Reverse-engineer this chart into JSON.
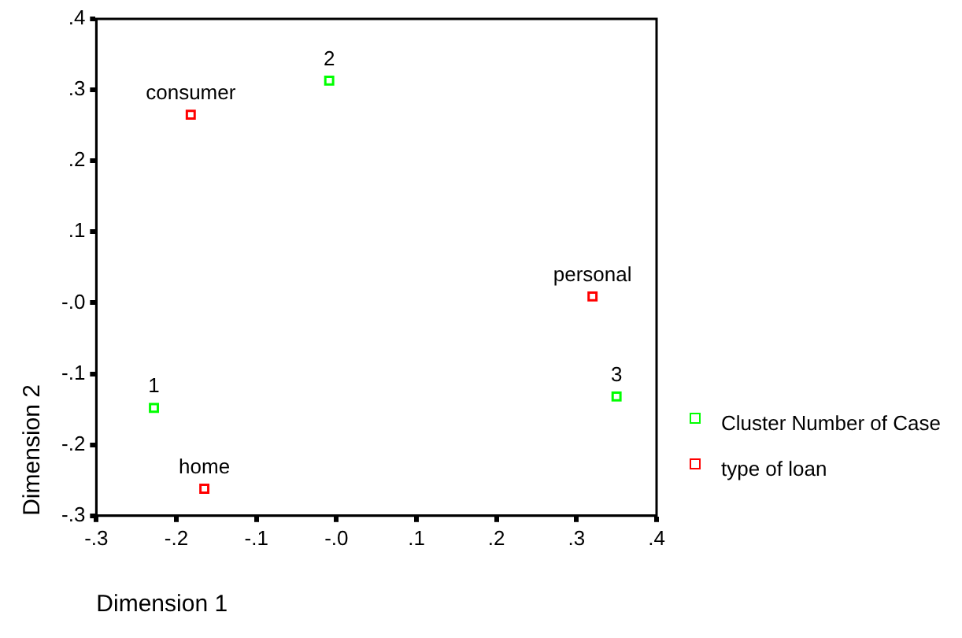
{
  "chart_data": {
    "type": "scatter",
    "xlabel": "Dimension 1",
    "ylabel": "Dimension 2",
    "xlim": [
      -0.3,
      0.4
    ],
    "ylim": [
      -0.3,
      0.4
    ],
    "xticks": [
      {
        "value": -0.3,
        "label": "-.3"
      },
      {
        "value": -0.2,
        "label": "-.2"
      },
      {
        "value": -0.1,
        "label": "-.1"
      },
      {
        "value": 0,
        "label": "-.0"
      },
      {
        "value": 0.1,
        "label": ".1"
      },
      {
        "value": 0.2,
        "label": ".2"
      },
      {
        "value": 0.3,
        "label": ".3"
      },
      {
        "value": 0.4,
        "label": ".4"
      }
    ],
    "yticks": [
      {
        "value": -0.3,
        "label": "-.3"
      },
      {
        "value": -0.2,
        "label": "-.2"
      },
      {
        "value": -0.1,
        "label": "-.1"
      },
      {
        "value": 0,
        "label": "-.0"
      },
      {
        "value": 0.1,
        "label": ".1"
      },
      {
        "value": 0.2,
        "label": ".2"
      },
      {
        "value": 0.3,
        "label": ".3"
      },
      {
        "value": 0.4,
        "label": ".4"
      }
    ],
    "grid": false,
    "legend": "right",
    "marker": "square",
    "series": [
      {
        "name": "Cluster Number of Case",
        "color": "#00ff00",
        "x": [
          -0.228,
          -0.009,
          0.35
        ],
        "values": [
          -0.148,
          0.313,
          -0.132
        ]
      },
      {
        "name": "type of loan",
        "color": "#ff0000",
        "x": [
          -0.182,
          0.32,
          -0.165
        ],
        "values": [
          0.265,
          0.009,
          -0.262
        ]
      }
    ],
    "annotations": [
      {
        "text": "1",
        "x": -0.228,
        "y": -0.148
      },
      {
        "text": "2",
        "x": -0.009,
        "y": 0.313
      },
      {
        "text": "3",
        "x": 0.35,
        "y": -0.132
      },
      {
        "text": "consumer",
        "x": -0.182,
        "y": 0.265
      },
      {
        "text": "personal",
        "x": 0.32,
        "y": 0.009
      },
      {
        "text": "home",
        "x": -0.165,
        "y": -0.262
      }
    ]
  }
}
